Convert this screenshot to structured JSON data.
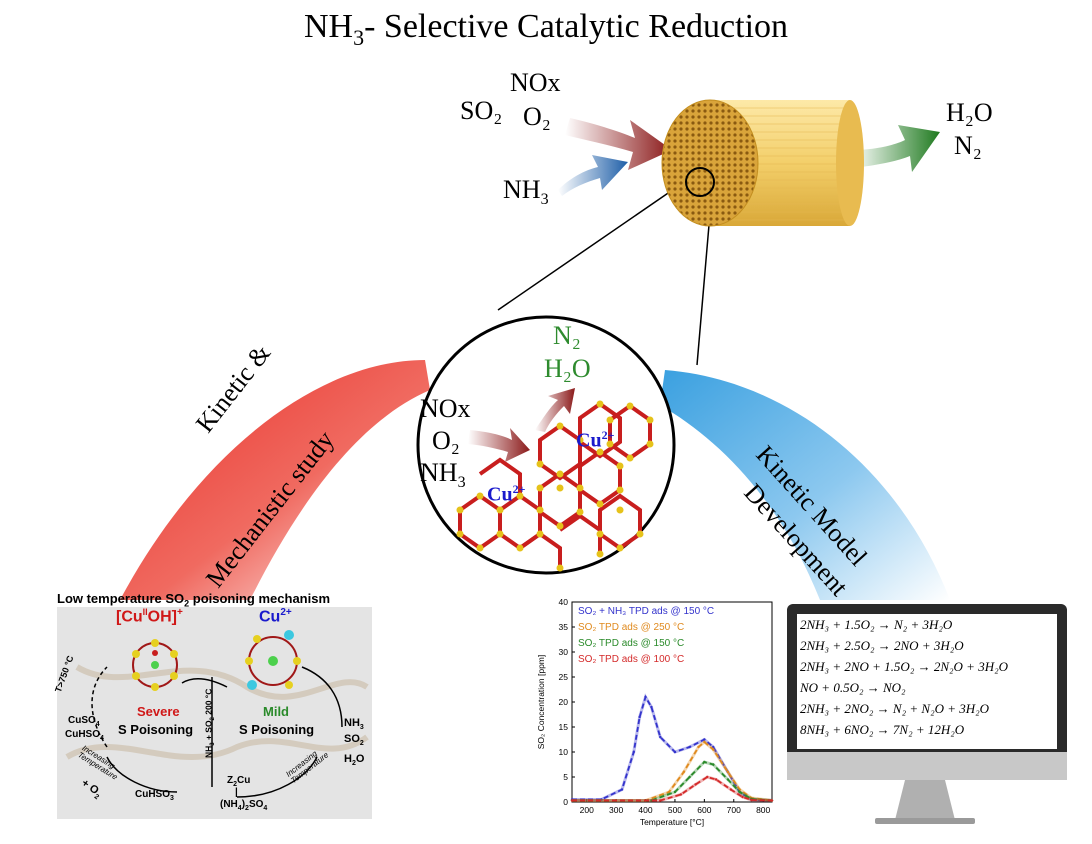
{
  "title": {
    "main": "NH",
    "sub": "3",
    "rest": "- Selective Catalytic Reduction"
  },
  "inputs": {
    "nox": "NOx",
    "so2": "SO₂",
    "o2": "O₂",
    "nh3": "NH",
    "nh3_sub": "3"
  },
  "outputs": {
    "h2o": "H₂O",
    "n2": "N₂"
  },
  "zoom": {
    "n2": "N₂",
    "h2o": "H₂O",
    "nox": "NOx",
    "o2": "O₂",
    "nh3": "NH",
    "nh3_sub": "3",
    "cu_left": "Cu",
    "cu_right": "Cu",
    "cu_charge": "2+"
  },
  "left_arc": {
    "line1": "Kinetic &",
    "line2": "Mechanistic study"
  },
  "right_arc": {
    "line1": "Kinetic Model",
    "line2": "Development"
  },
  "mechanism": {
    "title": "Low temperature SO",
    "title_sub": "2",
    "title_rest": " poisoning mechanism",
    "cuoh": "[Cu",
    "cuoh_sup": "II",
    "cuoh_rest": "OH]",
    "cuoh_plus": "+",
    "cu2": "Cu",
    "cu2_sup": "2+",
    "severe": "Severe",
    "severe_sub": "S Poisoning",
    "mild": "Mild",
    "mild_sub": "S Poisoning",
    "temp750": "T>750 °C",
    "cuso4": "CuSO",
    "cuso4_2": "CuHSO",
    "increasing": "Increasing",
    "temperature": "Temperature",
    "o2": "+ O",
    "cuhso3": "CuHSO",
    "nh3so2": "NH",
    "nh3so2_b": " + SO",
    "nh3so2_c": " 200 °C",
    "z2cu": "Z",
    "z2cu_b": "Cu",
    "nh42so4": "(NH",
    "nh42so4_b": ")",
    "nh42so4_c": "SO",
    "nh3_r": "NH",
    "so2_r": "SO",
    "h2o_r": "H",
    "h2o_r2": "O"
  },
  "chart_data": {
    "type": "line",
    "xlabel": "Temperature [°C]",
    "ylabel": "SO₂ Concentration [ppm]",
    "xlim": [
      150,
      830
    ],
    "ylim": [
      0,
      40
    ],
    "xticks": [
      200,
      300,
      400,
      500,
      600,
      700,
      800
    ],
    "yticks": [
      0,
      5,
      10,
      15,
      20,
      25,
      30,
      35,
      40
    ],
    "legend_placement": "top-left",
    "series": [
      {
        "name": "SO₂ + NH₃ TPD ads @ 150 °C",
        "color": "#3333cc",
        "x": [
          150,
          250,
          320,
          360,
          380,
          400,
          420,
          450,
          500,
          550,
          600,
          630,
          680,
          720,
          760,
          830
        ],
        "y": [
          0.5,
          0.5,
          2.5,
          10,
          17,
          21,
          19,
          13,
          10,
          11,
          12.5,
          11,
          6,
          2,
          0.5,
          0.3
        ]
      },
      {
        "name": "SO₂ TPD ads @ 250 °C",
        "color": "#e08a1e",
        "x": [
          150,
          400,
          480,
          530,
          580,
          600,
          630,
          680,
          720,
          760,
          830
        ],
        "y": [
          0.3,
          0.3,
          2,
          6,
          11,
          12,
          10.5,
          6,
          2.5,
          0.8,
          0.3
        ]
      },
      {
        "name": "SO₂ TPD ads @ 150 °C",
        "color": "#2a8a2a",
        "x": [
          150,
          420,
          500,
          550,
          600,
          630,
          680,
          720,
          760,
          830
        ],
        "y": [
          0.3,
          0.3,
          2,
          5,
          8,
          7.5,
          4.5,
          2,
          0.6,
          0.3
        ]
      },
      {
        "name": "SO₂ TPD ads @ 100 °C",
        "color": "#d42a2a",
        "x": [
          150,
          450,
          520,
          570,
          610,
          640,
          690,
          730,
          760,
          830
        ],
        "y": [
          0.3,
          0.3,
          1.5,
          3.5,
          5,
          4.5,
          2.5,
          1,
          0.4,
          0.3
        ]
      }
    ]
  },
  "equations": [
    "2NH₃ + 1.5O₂ → N₂ + 3H₂O",
    "2NH₃ + 2.5O₂ → 2NO + 3H₂O",
    "2NH₃ + 2NO + 1.5O₂ → 2N₂O + 3H₂O",
    "NO + 0.5O₂ → NO₂",
    "2NH₃ + 2NO₂ → N₂ + N₂O + 3H₂O",
    "8NH₃ + 6NO₂ → 7N₂ + 12H₂O"
  ],
  "colors": {
    "red_arrow": "#8b1a1a",
    "blue_arrow": "#1f5fa8",
    "green_arrow": "#1f7a1f",
    "cylinder": "#f0c860",
    "red_arc": "#e8302a",
    "blue_arc": "#3aa0e0"
  }
}
